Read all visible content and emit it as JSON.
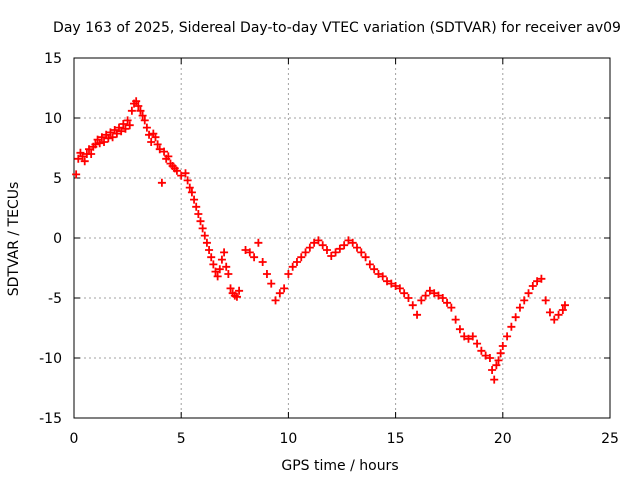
{
  "chart_data": {
    "type": "scatter",
    "title": "Day 163 of 2025, Sidereal Day-to-day VTEC variation (SDTVAR) for receiver av09",
    "xlabel": "GPS time / hours",
    "ylabel": "SDTVAR / TECUs",
    "xlim": [
      0,
      25
    ],
    "ylim": [
      -15,
      15
    ],
    "xticks": [
      0,
      5,
      10,
      15,
      20,
      25
    ],
    "yticks": [
      -15,
      -10,
      -5,
      0,
      5,
      10,
      15
    ],
    "grid": true,
    "marker": "plus",
    "series": [
      {
        "name": "SDTVAR",
        "color": "#ff0000",
        "points": [
          [
            0.1,
            5.3
          ],
          [
            0.2,
            6.6
          ],
          [
            0.3,
            7.1
          ],
          [
            0.4,
            6.8
          ],
          [
            0.5,
            6.4
          ],
          [
            0.6,
            7.0
          ],
          [
            0.7,
            7.4
          ],
          [
            0.8,
            7.0
          ],
          [
            0.9,
            7.6
          ],
          [
            1.0,
            7.8
          ],
          [
            1.1,
            8.2
          ],
          [
            1.2,
            7.9
          ],
          [
            1.3,
            8.4
          ],
          [
            1.4,
            8.0
          ],
          [
            1.5,
            8.6
          ],
          [
            1.6,
            8.3
          ],
          [
            1.7,
            8.8
          ],
          [
            1.8,
            8.4
          ],
          [
            1.9,
            9.0
          ],
          [
            2.0,
            8.7
          ],
          [
            2.1,
            9.2
          ],
          [
            2.2,
            8.9
          ],
          [
            2.3,
            9.5
          ],
          [
            2.4,
            9.1
          ],
          [
            2.5,
            9.8
          ],
          [
            2.6,
            9.4
          ],
          [
            2.7,
            10.6
          ],
          [
            2.8,
            11.2
          ],
          [
            2.9,
            11.4
          ],
          [
            3.0,
            11.0
          ],
          [
            3.1,
            10.6
          ],
          [
            3.2,
            10.2
          ],
          [
            3.3,
            9.8
          ],
          [
            3.4,
            9.2
          ],
          [
            3.5,
            8.6
          ],
          [
            3.6,
            8.0
          ],
          [
            3.7,
            8.7
          ],
          [
            3.8,
            8.4
          ],
          [
            3.9,
            7.8
          ],
          [
            4.0,
            7.4
          ],
          [
            4.1,
            4.6
          ],
          [
            4.2,
            7.2
          ],
          [
            4.3,
            6.6
          ],
          [
            4.4,
            6.8
          ],
          [
            4.5,
            6.2
          ],
          [
            4.6,
            6.0
          ],
          [
            4.7,
            5.8
          ],
          [
            4.8,
            5.6
          ],
          [
            5.0,
            5.2
          ],
          [
            5.2,
            5.4
          ],
          [
            5.3,
            4.8
          ],
          [
            5.4,
            4.2
          ],
          [
            5.5,
            3.8
          ],
          [
            5.6,
            3.2
          ],
          [
            5.7,
            2.6
          ],
          [
            5.8,
            2.0
          ],
          [
            5.9,
            1.4
          ],
          [
            6.0,
            0.8
          ],
          [
            6.1,
            0.2
          ],
          [
            6.2,
            -0.4
          ],
          [
            6.3,
            -1.0
          ],
          [
            6.4,
            -1.6
          ],
          [
            6.5,
            -2.2
          ],
          [
            6.6,
            -2.8
          ],
          [
            6.7,
            -3.2
          ],
          [
            6.8,
            -2.6
          ],
          [
            6.9,
            -1.8
          ],
          [
            7.0,
            -1.2
          ],
          [
            7.1,
            -2.4
          ],
          [
            7.2,
            -3.0
          ],
          [
            7.3,
            -4.2
          ],
          [
            7.4,
            -4.6
          ],
          [
            7.5,
            -4.8
          ],
          [
            7.6,
            -4.9
          ],
          [
            7.7,
            -4.4
          ],
          [
            8.0,
            -1.0
          ],
          [
            8.2,
            -1.2
          ],
          [
            8.4,
            -1.6
          ],
          [
            8.6,
            -0.4
          ],
          [
            8.8,
            -2.0
          ],
          [
            9.0,
            -3.0
          ],
          [
            9.2,
            -3.8
          ],
          [
            9.4,
            -5.2
          ],
          [
            9.6,
            -4.6
          ],
          [
            9.8,
            -4.2
          ],
          [
            10.0,
            -3.0
          ],
          [
            10.2,
            -2.4
          ],
          [
            10.4,
            -2.0
          ],
          [
            10.6,
            -1.6
          ],
          [
            10.8,
            -1.2
          ],
          [
            11.0,
            -0.8
          ],
          [
            11.2,
            -0.4
          ],
          [
            11.4,
            -0.2
          ],
          [
            11.6,
            -0.6
          ],
          [
            11.8,
            -1.0
          ],
          [
            12.0,
            -1.5
          ],
          [
            12.2,
            -1.2
          ],
          [
            12.4,
            -0.9
          ],
          [
            12.6,
            -0.6
          ],
          [
            12.8,
            -0.2
          ],
          [
            13.0,
            -0.4
          ],
          [
            13.2,
            -0.8
          ],
          [
            13.4,
            -1.2
          ],
          [
            13.6,
            -1.6
          ],
          [
            13.8,
            -2.2
          ],
          [
            14.0,
            -2.6
          ],
          [
            14.2,
            -3.0
          ],
          [
            14.4,
            -3.2
          ],
          [
            14.6,
            -3.6
          ],
          [
            14.8,
            -3.8
          ],
          [
            15.0,
            -4.0
          ],
          [
            15.2,
            -4.2
          ],
          [
            15.4,
            -4.6
          ],
          [
            15.6,
            -5.0
          ],
          [
            15.8,
            -5.6
          ],
          [
            16.0,
            -6.4
          ],
          [
            16.2,
            -5.2
          ],
          [
            16.4,
            -4.8
          ],
          [
            16.6,
            -4.4
          ],
          [
            16.8,
            -4.6
          ],
          [
            17.0,
            -4.8
          ],
          [
            17.2,
            -5.0
          ],
          [
            17.4,
            -5.4
          ],
          [
            17.6,
            -5.8
          ],
          [
            17.8,
            -6.8
          ],
          [
            18.0,
            -7.6
          ],
          [
            18.2,
            -8.2
          ],
          [
            18.4,
            -8.4
          ],
          [
            18.6,
            -8.2
          ],
          [
            18.8,
            -8.8
          ],
          [
            19.0,
            -9.4
          ],
          [
            19.2,
            -9.8
          ],
          [
            19.4,
            -10.0
          ],
          [
            19.5,
            -11.0
          ],
          [
            19.6,
            -11.8
          ],
          [
            19.7,
            -10.6
          ],
          [
            19.8,
            -10.2
          ],
          [
            19.9,
            -9.6
          ],
          [
            20.0,
            -9.0
          ],
          [
            20.2,
            -8.2
          ],
          [
            20.4,
            -7.4
          ],
          [
            20.6,
            -6.6
          ],
          [
            20.8,
            -5.8
          ],
          [
            21.0,
            -5.2
          ],
          [
            21.2,
            -4.6
          ],
          [
            21.4,
            -4.0
          ],
          [
            21.6,
            -3.6
          ],
          [
            21.8,
            -3.4
          ],
          [
            22.0,
            -5.2
          ],
          [
            22.2,
            -6.2
          ],
          [
            22.4,
            -6.8
          ],
          [
            22.6,
            -6.4
          ],
          [
            22.8,
            -6.0
          ],
          [
            22.9,
            -5.6
          ]
        ]
      }
    ]
  }
}
